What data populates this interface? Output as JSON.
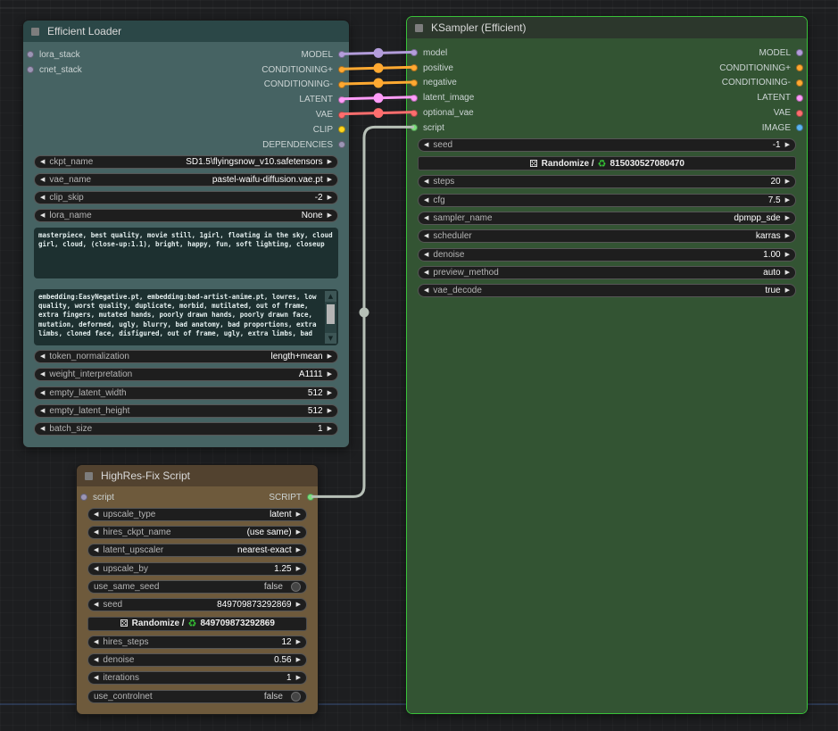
{
  "colors": {
    "selected_node_border": "#39c239",
    "slot_model": "#b39ddb",
    "slot_conditioning": "#ffa931",
    "slot_latent": "#ff9cf9",
    "slot_vae": "#ff6e6e",
    "slot_clip": "#ffd61e",
    "slot_image": "#5bb5f2",
    "slot_script": "#7ddf7d",
    "slot_generic": "#9b95b5",
    "wire_script": "#b7c0b7"
  },
  "nodes": {
    "efficient_loader": {
      "title": "Efficient Loader",
      "io": [
        {
          "in": {
            "label": "lora_stack",
            "color": "#9b95b5"
          },
          "out": {
            "label": "MODEL",
            "color": "#b39ddb"
          }
        },
        {
          "in": {
            "label": "cnet_stack",
            "color": "#9b95b5"
          },
          "out": {
            "label": "CONDITIONING+",
            "color": "#ffa931"
          }
        },
        {
          "out": {
            "label": "CONDITIONING-",
            "color": "#ffa931"
          }
        },
        {
          "out": {
            "label": "LATENT",
            "color": "#ff9cf9"
          }
        },
        {
          "out": {
            "label": "VAE",
            "color": "#ff6e6e"
          }
        },
        {
          "out": {
            "label": "CLIP",
            "color": "#ffd61e"
          }
        },
        {
          "out": {
            "label": "DEPENDENCIES",
            "color": "#9b95b5"
          }
        }
      ],
      "widgets": [
        {
          "type": "combo",
          "name": "ckpt-name",
          "label": "ckpt_name",
          "value": "SD1.5\\flyingsnow_v10.safetensors"
        },
        {
          "type": "combo",
          "name": "vae-name",
          "label": "vae_name",
          "value": "pastel-waifu-diffusion.vae.pt"
        },
        {
          "type": "combo",
          "name": "clip-skip",
          "label": "clip_skip",
          "value": "-2"
        },
        {
          "type": "combo",
          "name": "lora-name",
          "label": "lora_name",
          "value": "None"
        },
        {
          "type": "textarea",
          "name": "positive-prompt",
          "scrollbar": false,
          "value": "masterpiece, best quality, movie still, 1girl, floating in the sky, cloud girl, cloud, (close-up:1.1), bright, happy, fun, soft lighting, closeup"
        },
        {
          "type": "textarea",
          "name": "negative-prompt",
          "scrollbar": true,
          "value": "embedding:EasyNegative.pt, embedding:bad-artist-anime.pt, lowres, low quality, worst quality, duplicate, morbid, mutilated, out of frame, extra fingers, mutated hands, poorly drawn hands, poorly drawn face, mutation, deformed, ugly, blurry, bad anatomy, bad proportions, extra limbs, cloned face, disfigured, out of frame, ugly, extra limbs, bad"
        },
        {
          "type": "combo",
          "name": "token-normalization",
          "label": "token_normalization",
          "value": "length+mean"
        },
        {
          "type": "combo",
          "name": "weight-interpretation",
          "label": "weight_interpretation",
          "value": "A1111"
        },
        {
          "type": "combo",
          "name": "empty-latent-width",
          "label": "empty_latent_width",
          "value": "512"
        },
        {
          "type": "combo",
          "name": "empty-latent-height",
          "label": "empty_latent_height",
          "value": "512"
        },
        {
          "type": "combo",
          "name": "batch-size",
          "label": "batch_size",
          "value": "1"
        }
      ]
    },
    "ksampler": {
      "title": "KSampler (Efficient)",
      "selected": true,
      "io": [
        {
          "in": {
            "label": "model",
            "color": "#b39ddb"
          },
          "out": {
            "label": "MODEL",
            "color": "#b39ddb"
          }
        },
        {
          "in": {
            "label": "positive",
            "color": "#ffa931"
          },
          "out": {
            "label": "CONDITIONING+",
            "color": "#ffa931"
          }
        },
        {
          "in": {
            "label": "negative",
            "color": "#ffa931"
          },
          "out": {
            "label": "CONDITIONING-",
            "color": "#ffa931"
          }
        },
        {
          "in": {
            "label": "latent_image",
            "color": "#ff9cf9"
          },
          "out": {
            "label": "LATENT",
            "color": "#ff9cf9"
          }
        },
        {
          "in": {
            "label": "optional_vae",
            "color": "#ff6e6e"
          },
          "out": {
            "label": "VAE",
            "color": "#ff6e6e"
          }
        },
        {
          "in": {
            "label": "script",
            "color": "#7ddf7d"
          },
          "out": {
            "label": "IMAGE",
            "color": "#5bb5f2"
          }
        }
      ],
      "widgets": [
        {
          "type": "combo",
          "name": "seed",
          "label": "seed",
          "value": "-1"
        },
        {
          "type": "button",
          "name": "randomize-seed",
          "dice_icon": "⚄",
          "label": "Randomize /",
          "recycle_icon": "♻",
          "value": "815030527080470"
        },
        {
          "type": "combo",
          "name": "steps",
          "label": "steps",
          "value": "20"
        },
        {
          "type": "combo",
          "name": "cfg",
          "label": "cfg",
          "value": "7.5"
        },
        {
          "type": "combo",
          "name": "sampler-name",
          "label": "sampler_name",
          "value": "dpmpp_sde"
        },
        {
          "type": "combo",
          "name": "scheduler",
          "label": "scheduler",
          "value": "karras"
        },
        {
          "type": "combo",
          "name": "denoise",
          "label": "denoise",
          "value": "1.00"
        },
        {
          "type": "combo",
          "name": "preview-method",
          "label": "preview_method",
          "value": "auto"
        },
        {
          "type": "combo",
          "name": "vae-decode",
          "label": "vae_decode",
          "value": "true"
        }
      ]
    },
    "highres": {
      "title": "HighRes-Fix Script",
      "io": [
        {
          "in": {
            "label": "script",
            "color": "#9b95b5"
          },
          "out": {
            "label": "SCRIPT",
            "color": "#7ddf7d"
          }
        }
      ],
      "widgets": [
        {
          "type": "combo",
          "name": "upscale-type",
          "label": "upscale_type",
          "value": "latent"
        },
        {
          "type": "combo",
          "name": "hires-ckpt-name",
          "label": "hires_ckpt_name",
          "value": "(use same)"
        },
        {
          "type": "combo",
          "name": "latent-upscaler",
          "label": "latent_upscaler",
          "value": "nearest-exact"
        },
        {
          "type": "combo",
          "name": "upscale-by",
          "label": "upscale_by",
          "value": "1.25"
        },
        {
          "type": "toggle",
          "name": "use-same-seed",
          "label": "use_same_seed",
          "value": "false"
        },
        {
          "type": "combo",
          "name": "hires-seed",
          "label": "seed",
          "value": "849709873292869"
        },
        {
          "type": "button",
          "name": "randomize-hires-seed",
          "dice_icon": "⚄",
          "label": "Randomize /",
          "recycle_icon": "♻",
          "value": "849709873292869"
        },
        {
          "type": "combo",
          "name": "hires-steps",
          "label": "hires_steps",
          "value": "12"
        },
        {
          "type": "combo",
          "name": "hires-denoise",
          "label": "denoise",
          "value": "0.56"
        },
        {
          "type": "combo",
          "name": "iterations",
          "label": "iterations",
          "value": "1"
        },
        {
          "type": "toggle",
          "name": "use-controlnet",
          "label": "use_controlnet",
          "value": "false"
        }
      ]
    }
  },
  "scrollbar": {
    "up_icon": "▲",
    "down_icon": "▼"
  }
}
